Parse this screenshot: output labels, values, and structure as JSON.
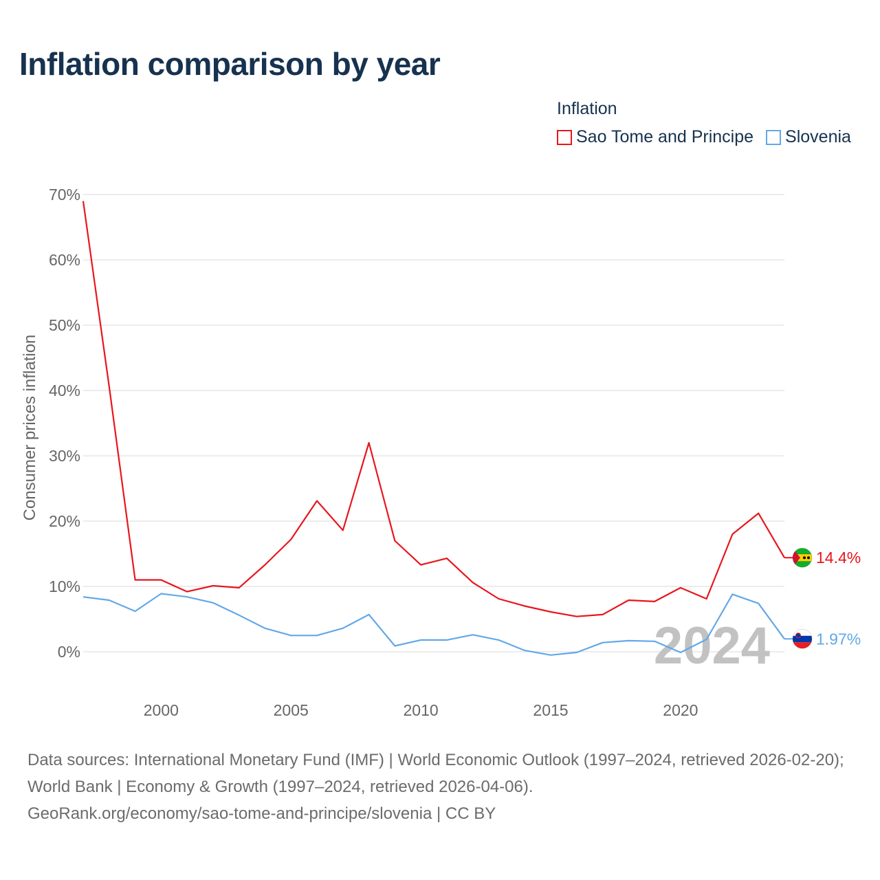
{
  "title": "Inflation comparison by year",
  "legend": {
    "title": "Inflation",
    "items": [
      {
        "label": "Sao Tome and Principe",
        "color": "#e8151c"
      },
      {
        "label": "Slovenia",
        "color": "#62a8e8"
      }
    ]
  },
  "chart_data": {
    "type": "line",
    "ylabel": "Consumer prices inflation",
    "xlabel": "",
    "ylim": [
      -6,
      72
    ],
    "xlim": [
      1997,
      2024
    ],
    "yticks": [
      0,
      10,
      20,
      30,
      40,
      50,
      60,
      70
    ],
    "ytick_labels": [
      "0%",
      "10%",
      "20%",
      "30%",
      "40%",
      "50%",
      "60%",
      "70%"
    ],
    "xticks": [
      2000,
      2005,
      2010,
      2015,
      2020
    ],
    "xtick_labels": [
      "2000",
      "2005",
      "2010",
      "2015",
      "2020"
    ],
    "x": [
      1997,
      1998,
      1999,
      2000,
      2001,
      2002,
      2003,
      2004,
      2005,
      2006,
      2007,
      2008,
      2009,
      2010,
      2011,
      2012,
      2013,
      2014,
      2015,
      2016,
      2017,
      2018,
      2019,
      2020,
      2021,
      2022,
      2023,
      2024
    ],
    "series": [
      {
        "name": "Sao Tome and Principe",
        "color": "#e8151c",
        "end_label": "14.4%",
        "values": [
          69.0,
          40.6,
          11.0,
          11.0,
          9.2,
          10.1,
          9.8,
          13.3,
          17.2,
          23.1,
          18.6,
          32.0,
          17.0,
          13.3,
          14.3,
          10.6,
          8.1,
          7.0,
          6.1,
          5.4,
          5.7,
          7.9,
          7.7,
          9.8,
          8.1,
          18.0,
          21.2,
          14.4
        ]
      },
      {
        "name": "Slovenia",
        "color": "#62a8e8",
        "end_label": "1.97%",
        "values": [
          8.4,
          7.9,
          6.2,
          8.9,
          8.4,
          7.5,
          5.6,
          3.6,
          2.5,
          2.5,
          3.6,
          5.7,
          0.9,
          1.8,
          1.8,
          2.6,
          1.8,
          0.2,
          -0.5,
          -0.1,
          1.4,
          1.7,
          1.6,
          -0.1,
          1.9,
          8.8,
          7.4,
          1.97
        ]
      }
    ],
    "year_watermark": "2024"
  },
  "footer": {
    "line1": "Data sources: International Monetary Fund (IMF) | World Economic Outlook (1997–2024, retrieved 2026-02-20); World Bank | Economy & Growth (1997–2024, retrieved 2026-04-06).",
    "line2": "GeoRank.org/economy/sao-tome-and-principe/slovenia | CC BY"
  }
}
